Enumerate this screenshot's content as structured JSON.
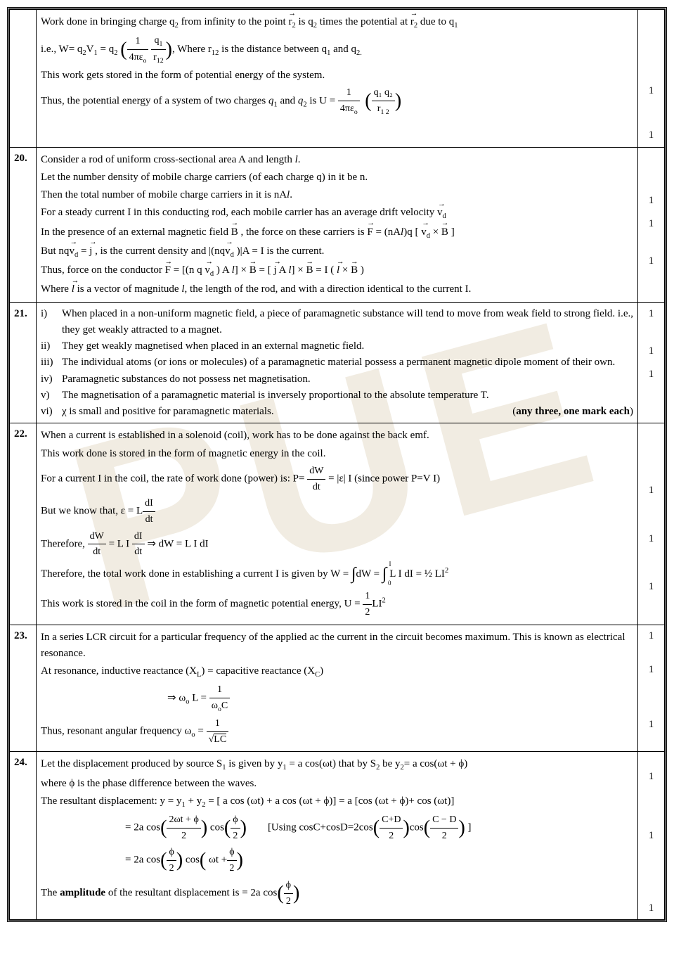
{
  "watermark_text": "PUE",
  "rows": [
    {
      "qnum": "",
      "marks": [
        "1",
        "1"
      ],
      "content": {
        "p1_a": "Work done in bringing charge q",
        "p1_b": " from infinity to the point ",
        "p1_c": " is q",
        "p1_d": " times the potential at ",
        "p1_e": " due to q",
        "p2_a": "i.e.,   W= q",
        "p2_b": "V",
        "p2_c": " = q",
        "p2_d": ",     Where  r",
        "p2_e": " is the distance between q",
        "p2_f": " and q",
        "p3": "This work gets stored in the form of potential energy of the system.",
        "p4_a": "Thus, the potential energy of a system of two charges ",
        "p4_b": " and ",
        "p4_c": "   is    U =",
        "frac_1_4pe": "1",
        "frac_den_4pe": "4πε",
        "frac_q1": "q",
        "frac_r12": "r",
        "frac_q1q2": "q₁ q₂",
        "frac_r12b": "r",
        "sub_o": "o",
        "sub_1": "1",
        "sub_2": "2",
        "sub_12": "12",
        "sub_1_2": "1 2"
      }
    },
    {
      "qnum": "20.",
      "marks": [
        "1",
        "1",
        "1"
      ],
      "content": {
        "p1": "Consider a rod of uniform cross-sectional area A and length ",
        "p1_l": "l",
        "p2": "Let the number density of mobile charge carriers (of each charge q) in it be n.",
        "p3_a": "Then the total number of mobile charge carriers in it is  nA",
        "p3_l": "l",
        "p4_a": "For a steady current I in this conducting rod, each mobile carrier has an average drift velocity ",
        "p5_a": "In the presence of an external magnetic field ",
        "p5_b": " , the force on these carriers is      ",
        "p5_c": " = (nA",
        "p5_d": ")q [ ",
        "p5_e": "  ×  ",
        "p5_f": " ]",
        "vd": "v",
        "vd_sub": "d",
        "B": "B",
        "F": "F",
        "l_txt": "l",
        "p6_a": "But   nq",
        "p6_b": " =  ",
        "p6_c": " , is the current density and |(nq",
        "p6_d": " )|A = I is the current.",
        "j": "j",
        "p7_a": "Thus, force on the conductor ",
        "p7_b": "= [(n q ",
        "p7_c": " ) A ",
        "p7_d": "] × ",
        "p7_e": " = [ ",
        "p7_f": " A ",
        "p7_g": "] × ",
        "p7_h": " = I ( ",
        "p7_i": "  ×  ",
        "p7_j": " )",
        "p8_a": "Where ",
        "p8_b": " is a vector of magnitude ",
        "p8_c": ", the length of the rod, and with a direction identical to the current I."
      }
    },
    {
      "qnum": "21.",
      "marks": [
        "1",
        "1",
        "1"
      ],
      "content": {
        "i_label": "i)",
        "i_text": "When placed in a non-uniform magnetic field, a piece of paramagnetic substance will tend to move from weak field to strong field. i.e., they get weakly attracted to a magnet.",
        "ii_label": "ii)",
        "ii_text": "They get weakly magnetised when placed in an external magnetic field.",
        "iii_label": "iii)",
        "iii_text": "The individual atoms (or ions or molecules) of a paramagnetic material possess a permanent magnetic dipole moment of their own.",
        "iv_label": "iv)",
        "iv_text": "Paramagnetic substances do not possess net magnetisation.",
        "v_label": "v)",
        "v_text": "The magnetisation of a paramagnetic material is inversely proportional to the absolute temperature T.",
        "vi_label": "vi)",
        "vi_text": "χ is small and positive for paramagnetic materials.",
        "note": "(any three, one mark each)"
      }
    },
    {
      "qnum": "22.",
      "marks": [
        "1",
        "1",
        "1"
      ],
      "content": {
        "p1": "When a current is established in a solenoid (coil), work has to be done against the back emf.",
        "p2": "This work done is stored in the form of magnetic energy in the coil.",
        "p3_a": "For a current I in the coil, the rate of work done (power) is: P= ",
        "p3_b": " = |ε| I     (since power P=V I)",
        "dW": "dW",
        "dt": "dt",
        "p4_a": "But we know that,  ε = L",
        "dI": "dI",
        "p5_a": "Therefore, ",
        "p5_b": " = L I ",
        "p5_c": "   ⇒   dW = L I dI",
        "p6_a": "Therefore, the total work done in establishing a current I is given by W = ",
        "p6_b": "dW = ",
        "p6_c": "L I dI  = ½ LI",
        "int": "∫",
        "int_0": "0",
        "int_I": "I",
        "p7_a": "This work is stored in the coil in the form of magnetic potential energy, U = ",
        "half_num": "1",
        "half_den": "2",
        "p7_b": "LI"
      }
    },
    {
      "qnum": "23.",
      "marks": [
        "1",
        "1",
        "1"
      ],
      "content": {
        "p1": "In a series LCR circuit for a particular frequency of the applied ac the current in the circuit becomes maximum. This is known as electrical resonance.",
        "p2_a": "At resonance, inductive reactance (X",
        "p2_b": ") = capacitive reactance (X",
        "p2_c": ")",
        "sub_L": "L",
        "sub_C": "C",
        "eq_a": "⇒    ω",
        "eq_b": " L  =  ",
        "sub_o": "o",
        "frac_1": "1",
        "frac_woC": "ω",
        "frac_woC_b": "C",
        "p3_a": "Thus, resonant angular frequency  ω",
        "p3_b": "   =   ",
        "frac_LC_den": "LC",
        "sqrt": "√"
      }
    },
    {
      "qnum": "24.",
      "marks": [
        "1",
        "1",
        "1"
      ],
      "content": {
        "p1_a": "Let the displacement produced by source S",
        "p1_b": " is given by  y",
        "p1_c": " = a cos(ωt) that by  S",
        "p1_d": " be   y",
        "p1_e": "= a cos(ωt + ϕ)",
        "p2": "where ϕ is the phase difference between the waves.",
        "p3_a": "The resultant displacement: y  = y",
        "p3_b": " + y",
        "p3_c": " = [ a cos (ωt) + a cos (ωt + ϕ)] = a [cos (ωt + ϕ)+ cos (ωt)]",
        "eq1_a": "= 2a cos",
        "eq1_b": " cos",
        "frac_2wtphi": "2ωt + ϕ",
        "frac_2": "2",
        "frac_phi": "ϕ",
        "trig_a": "[Using cosC+cosD=2cos",
        "trig_b": "cos",
        "trig_c": " ]",
        "frac_CD": "C+D",
        "frac_CmD": "C − D",
        "eq2_a": "= 2a cos",
        "eq2_b": "  cos",
        "eq2_c": " ωt +",
        "p4_a": "The ",
        "p4_b": "amplitude",
        "p4_c": " of the resultant displacement is = 2a cos"
      }
    }
  ]
}
